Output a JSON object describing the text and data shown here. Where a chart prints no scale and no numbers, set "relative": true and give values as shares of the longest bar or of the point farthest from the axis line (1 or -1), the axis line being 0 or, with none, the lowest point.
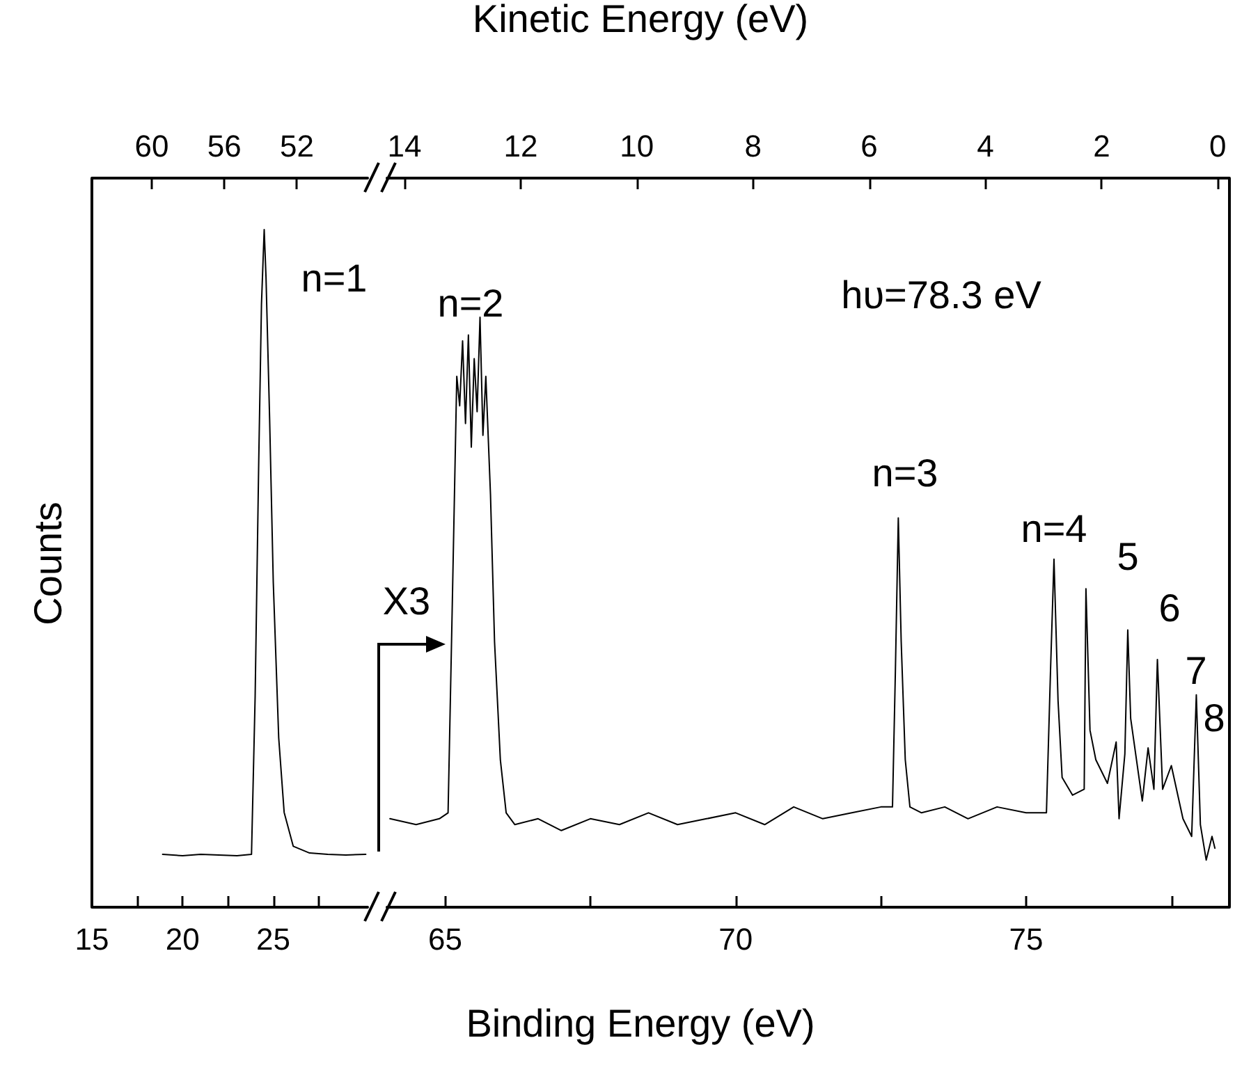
{
  "chart_data": [
    {
      "type": "line",
      "ylabel": "Counts",
      "relative": true,
      "xlim": [
        15,
        30.2
      ],
      "xticks": [
        15,
        {
          "value": 17.5,
          "label": null
        },
        20,
        {
          "value": 22.5,
          "label": null
        },
        25,
        {
          "value": 27.5,
          "label": null
        }
      ],
      "x2lim": [
        63.3,
        48.1
      ],
      "x2ticks": [
        60,
        56,
        52
      ],
      "annotations": [
        "n=1"
      ],
      "x": [
        18.9,
        20,
        21,
        22,
        23,
        23.8,
        24.0,
        24.2,
        24.35,
        24.5,
        24.6,
        24.8,
        25.0,
        25.3,
        25.6,
        26.1,
        27,
        28,
        29,
        30.1
      ],
      "series": [
        {
          "color": "#000000",
          "values": [
            0.078,
            0.076,
            0.078,
            0.077,
            0.076,
            0.078,
            0.31,
            0.66,
            0.89,
            1.0,
            0.93,
            0.72,
            0.48,
            0.25,
            0.14,
            0.09,
            0.08,
            0.078,
            0.077,
            0.078
          ]
        }
      ]
    },
    {
      "type": "line",
      "xlabel": "Binding Energy (eV)",
      "x2label": "Kinetic Energy (eV)",
      "relative": true,
      "xlim": [
        64.0,
        78.5
      ],
      "xticks": [
        65,
        {
          "value": 67.5,
          "label": null
        },
        70,
        {
          "value": 72.5,
          "label": null
        },
        75,
        {
          "value": 77.5,
          "label": null
        }
      ],
      "x2lim": [
        14.3,
        -0.2
      ],
      "x2ticks": [
        14,
        12,
        10,
        8,
        6,
        4,
        2,
        0
      ],
      "annotations": [
        "hυ=78.3 eV",
        "X3",
        "n=2",
        "n=3",
        "n=4",
        "5",
        "6",
        "7",
        "8"
      ],
      "x": [
        64.05,
        64.5,
        64.9,
        65.05,
        65.12,
        65.2,
        65.25,
        65.3,
        65.35,
        65.4,
        65.45,
        65.5,
        65.55,
        65.6,
        65.65,
        65.7,
        65.78,
        65.85,
        65.95,
        66.05,
        66.2,
        66.6,
        67,
        67.5,
        68,
        68.5,
        69,
        69.5,
        70,
        70.5,
        71,
        71.5,
        72,
        72.5,
        72.7,
        72.75,
        72.8,
        72.85,
        72.92,
        73.0,
        73.2,
        73.6,
        74,
        74.5,
        75,
        75.35,
        75.42,
        75.48,
        75.55,
        75.62,
        75.8,
        76.0,
        76.03,
        76.1,
        76.2,
        76.4,
        76.55,
        76.6,
        76.7,
        76.75,
        76.8,
        76.9,
        77.0,
        77.1,
        77.2,
        77.26,
        77.35,
        77.5,
        77.7,
        77.85,
        77.93,
        78.0,
        78.1,
        78.2,
        78.25
      ],
      "series": [
        {
          "color": "#000000",
          "values": [
            0.15,
            0.14,
            0.15,
            0.16,
            0.5,
            0.9,
            0.85,
            0.96,
            0.82,
            0.97,
            0.78,
            0.93,
            0.84,
            1.0,
            0.8,
            0.9,
            0.7,
            0.45,
            0.25,
            0.16,
            0.14,
            0.15,
            0.13,
            0.15,
            0.14,
            0.16,
            0.14,
            0.15,
            0.16,
            0.14,
            0.17,
            0.15,
            0.16,
            0.17,
            0.17,
            0.4,
            0.66,
            0.45,
            0.25,
            0.17,
            0.16,
            0.17,
            0.15,
            0.17,
            0.16,
            0.16,
            0.4,
            0.59,
            0.35,
            0.22,
            0.19,
            0.2,
            0.54,
            0.3,
            0.25,
            0.21,
            0.28,
            0.15,
            0.26,
            0.47,
            0.32,
            0.25,
            0.18,
            0.27,
            0.2,
            0.42,
            0.2,
            0.24,
            0.15,
            0.12,
            0.36,
            0.14,
            0.08,
            0.12,
            0.1
          ]
        }
      ]
    }
  ]
}
